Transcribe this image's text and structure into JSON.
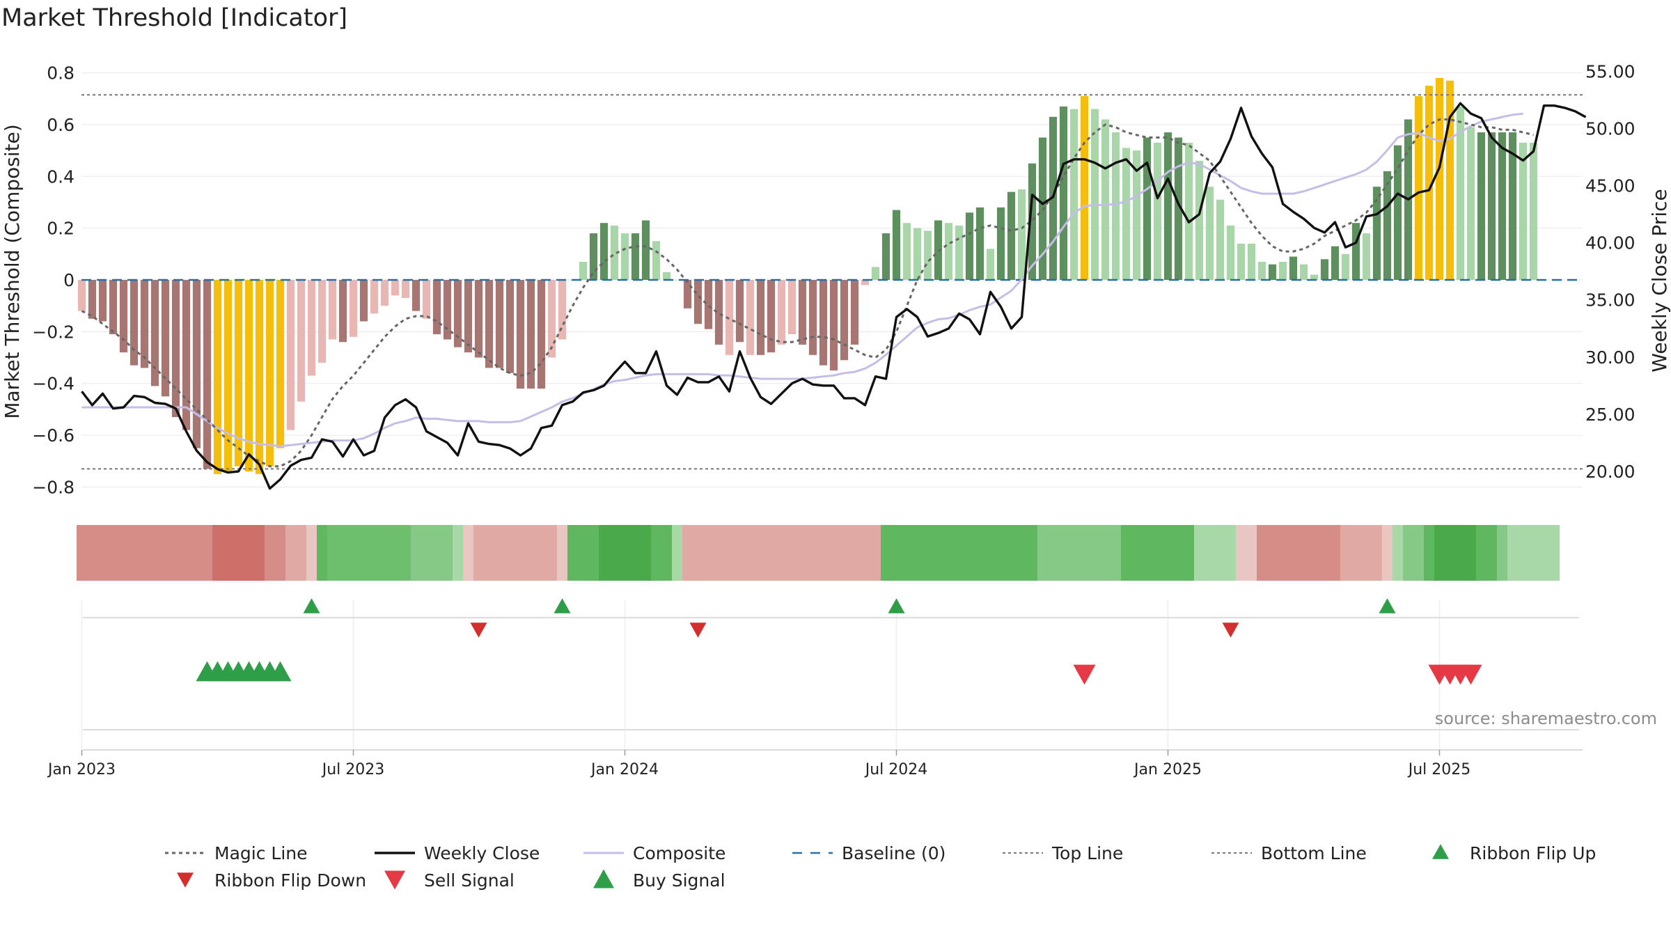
{
  "chart_data": {
    "type": "bar",
    "title": "Market Threshold [Indicator]",
    "ylabel": "Market Threshold (Composite)",
    "ylabel_right": "Weekly Close Price",
    "ylim": [
      -0.85,
      0.85
    ],
    "ylim_right": [
      17.5,
      56.0
    ],
    "yticks": [
      {
        "v": 0.8,
        "label": "0.8"
      },
      {
        "v": 0.6,
        "label": "0.6"
      },
      {
        "v": 0.4,
        "label": "0.4"
      },
      {
        "v": 0.2,
        "label": "0.2"
      },
      {
        "v": 0,
        "label": "0"
      },
      {
        "v": -0.2,
        "label": "−0.2"
      },
      {
        "v": -0.4,
        "label": "−0.4"
      },
      {
        "v": -0.6,
        "label": "−0.6"
      },
      {
        "v": -0.8,
        "label": "−0.8"
      }
    ],
    "yticks_right": [
      {
        "v": 55,
        "label": "55.00"
      },
      {
        "v": 50,
        "label": "50.00"
      },
      {
        "v": 45,
        "label": "45.00"
      },
      {
        "v": 40,
        "label": "40.00"
      },
      {
        "v": 35,
        "label": "35.00"
      },
      {
        "v": 30,
        "label": "30.00"
      },
      {
        "v": 25,
        "label": "25.00"
      },
      {
        "v": 20,
        "label": "20.00"
      }
    ],
    "xticks": [
      {
        "week": 1,
        "label": "Jan 2023"
      },
      {
        "week": 27,
        "label": "Jul 2023"
      },
      {
        "week": 53,
        "label": "Jan 2024"
      },
      {
        "week": 79,
        "label": "Jul 2024"
      },
      {
        "week": 105,
        "label": "Jan 2025"
      },
      {
        "week": 131,
        "label": "Jul 2025"
      }
    ],
    "top_line": 0.715,
    "bottom_line": -0.73,
    "baseline": 0,
    "composite": [
      -0.12,
      -0.15,
      -0.16,
      -0.21,
      -0.28,
      -0.33,
      -0.34,
      -0.41,
      -0.45,
      -0.53,
      -0.58,
      -0.65,
      -0.73,
      -0.75,
      -0.74,
      -0.72,
      -0.74,
      -0.75,
      -0.72,
      -0.65,
      -0.58,
      -0.47,
      -0.37,
      -0.32,
      -0.23,
      -0.24,
      -0.22,
      -0.16,
      -0.13,
      -0.1,
      -0.06,
      -0.07,
      -0.12,
      -0.15,
      -0.21,
      -0.23,
      -0.26,
      -0.28,
      -0.3,
      -0.34,
      -0.34,
      -0.36,
      -0.42,
      -0.42,
      -0.42,
      -0.3,
      -0.23,
      0.0,
      0.07,
      0.18,
      0.22,
      0.21,
      0.18,
      0.18,
      0.23,
      0.15,
      0.03,
      0.0,
      -0.11,
      -0.17,
      -0.19,
      -0.25,
      -0.29,
      -0.24,
      -0.29,
      -0.29,
      -0.28,
      -0.25,
      -0.21,
      -0.25,
      -0.29,
      -0.33,
      -0.35,
      -0.31,
      -0.25,
      -0.02,
      0.05,
      0.18,
      0.27,
      0.22,
      0.2,
      0.19,
      0.23,
      0.22,
      0.21,
      0.26,
      0.28,
      0.12,
      0.28,
      0.34,
      0.35,
      0.45,
      0.55,
      0.63,
      0.67,
      0.66,
      0.71,
      0.66,
      0.62,
      0.57,
      0.51,
      0.5,
      0.55,
      0.53,
      0.57,
      0.55,
      0.53,
      0.46,
      0.36,
      0.31,
      0.21,
      0.14,
      0.14,
      0.07,
      0.06,
      0.07,
      0.09,
      0.06,
      0.02,
      0.08,
      0.13,
      0.1,
      0.22,
      0.18,
      0.36,
      0.42,
      0.52,
      0.62,
      0.71,
      0.75,
      0.78,
      0.77,
      0.67,
      0.59,
      0.57,
      0.57,
      0.57,
      0.57,
      0.53,
      0.53
    ],
    "bar_colors": [
      "#e9b7b3",
      "#a87672",
      "#a87672",
      "#a87672",
      "#a87672",
      "#a87672",
      "#a87672",
      "#a87672",
      "#a87672",
      "#a87672",
      "#a87672",
      "#a87672",
      "#a87672",
      "#f5be0b",
      "#f5be0b",
      "#f5be0b",
      "#f5be0b",
      "#f5be0b",
      "#f5be0b",
      "#f5be0b",
      "#e9b7b3",
      "#e9b7b3",
      "#e9b7b3",
      "#e9b7b3",
      "#e9b7b3",
      "#a87672",
      "#e9b7b3",
      "#a87672",
      "#e9b7b3",
      "#e9b7b3",
      "#e9b7b3",
      "#e9b7b3",
      "#a87672",
      "#e9b7b3",
      "#a87672",
      "#a87672",
      "#a87672",
      "#a87672",
      "#a87672",
      "#a87672",
      "#a87672",
      "#a87672",
      "#a87672",
      "#a87672",
      "#a87672",
      "#e9b7b3",
      "#e9b7b3",
      "#a8d6a8",
      "#a8d6a8",
      "#5e8f5e",
      "#5e8f5e",
      "#a8d6a8",
      "#a8d6a8",
      "#5e8f5e",
      "#5e8f5e",
      "#a8d6a8",
      "#a8d6a8",
      "#a8d6a8",
      "#a87672",
      "#a87672",
      "#a87672",
      "#a87672",
      "#e9b7b3",
      "#a87672",
      "#e9b7b3",
      "#a87672",
      "#a87672",
      "#e9b7b3",
      "#e9b7b3",
      "#a87672",
      "#a87672",
      "#a87672",
      "#a87672",
      "#a87672",
      "#a87672",
      "#e9b7b3",
      "#a8d6a8",
      "#5e8f5e",
      "#5e8f5e",
      "#a8d6a8",
      "#a8d6a8",
      "#a8d6a8",
      "#5e8f5e",
      "#a8d6a8",
      "#a8d6a8",
      "#5e8f5e",
      "#5e8f5e",
      "#a8d6a8",
      "#5e8f5e",
      "#5e8f5e",
      "#a8d6a8",
      "#5e8f5e",
      "#5e8f5e",
      "#5e8f5e",
      "#5e8f5e",
      "#a8d6a8",
      "#f5be0b",
      "#a8d6a8",
      "#a8d6a8",
      "#a8d6a8",
      "#a8d6a8",
      "#a8d6a8",
      "#5e8f5e",
      "#a8d6a8",
      "#5e8f5e",
      "#5e8f5e",
      "#a8d6a8",
      "#a8d6a8",
      "#a8d6a8",
      "#a8d6a8",
      "#a8d6a8",
      "#a8d6a8",
      "#a8d6a8",
      "#a8d6a8",
      "#5e8f5e",
      "#a8d6a8",
      "#5e8f5e",
      "#a8d6a8",
      "#a8d6a8",
      "#5e8f5e",
      "#5e8f5e",
      "#a8d6a8",
      "#5e8f5e",
      "#a8d6a8",
      "#5e8f5e",
      "#5e8f5e",
      "#5e8f5e",
      "#5e8f5e",
      "#f5be0b",
      "#f5be0b",
      "#f5be0b",
      "#f5be0b",
      "#a8d6a8",
      "#a8d6a8",
      "#5e8f5e",
      "#5e8f5e",
      "#5e8f5e",
      "#5e8f5e",
      "#a8d6a8",
      "#a8d6a8"
    ],
    "magic_line": [
      -0.12,
      -0.14,
      -0.17,
      -0.2,
      -0.23,
      -0.27,
      -0.3,
      -0.34,
      -0.38,
      -0.42,
      -0.46,
      -0.5,
      -0.54,
      -0.58,
      -0.62,
      -0.65,
      -0.68,
      -0.7,
      -0.72,
      -0.72,
      -0.7,
      -0.66,
      -0.6,
      -0.53,
      -0.46,
      -0.41,
      -0.37,
      -0.32,
      -0.27,
      -0.22,
      -0.18,
      -0.15,
      -0.14,
      -0.14,
      -0.16,
      -0.19,
      -0.22,
      -0.25,
      -0.28,
      -0.31,
      -0.34,
      -0.36,
      -0.37,
      -0.36,
      -0.32,
      -0.26,
      -0.18,
      -0.1,
      -0.03,
      0.03,
      0.07,
      0.1,
      0.12,
      0.13,
      0.13,
      0.11,
      0.08,
      0.04,
      -0.01,
      -0.06,
      -0.1,
      -0.13,
      -0.15,
      -0.17,
      -0.19,
      -0.21,
      -0.23,
      -0.24,
      -0.24,
      -0.23,
      -0.22,
      -0.22,
      -0.23,
      -0.25,
      -0.27,
      -0.29,
      -0.3,
      -0.27,
      -0.2,
      -0.1,
      0.0,
      0.07,
      0.11,
      0.14,
      0.16,
      0.18,
      0.2,
      0.21,
      0.2,
      0.19,
      0.2,
      0.23,
      0.27,
      0.33,
      0.4,
      0.47,
      0.53,
      0.57,
      0.6,
      0.59,
      0.57,
      0.56,
      0.55,
      0.55,
      0.55,
      0.53,
      0.52,
      0.49,
      0.46,
      0.4,
      0.34,
      0.28,
      0.22,
      0.17,
      0.13,
      0.11,
      0.11,
      0.12,
      0.14,
      0.17,
      0.19,
      0.21,
      0.23,
      0.26,
      0.31,
      0.37,
      0.43,
      0.5,
      0.56,
      0.6,
      0.62,
      0.62,
      0.61,
      0.6,
      0.59,
      0.59,
      0.58,
      0.58,
      0.57,
      0.56
    ],
    "weekly_close": [
      27.0,
      25.8,
      26.8,
      25.5,
      25.6,
      26.6,
      26.5,
      26.0,
      25.9,
      25.5,
      23.5,
      21.8,
      20.8,
      20.2,
      19.9,
      20.0,
      21.5,
      20.6,
      18.5,
      19.3,
      20.5,
      21.0,
      21.2,
      22.8,
      22.6,
      21.3,
      22.8,
      21.4,
      21.8,
      24.7,
      25.8,
      26.3,
      25.6,
      23.5,
      23.0,
      22.5,
      21.4,
      24.2,
      22.6,
      22.4,
      22.3,
      22.0,
      21.4,
      22.0,
      23.8,
      24.0,
      25.8,
      26.1,
      26.9,
      27.1,
      27.5,
      28.6,
      29.6,
      28.6,
      28.6,
      30.5,
      27.5,
      26.7,
      28.2,
      27.8,
      27.8,
      28.3,
      27.0,
      30.5,
      28.2,
      26.5,
      25.9,
      26.8,
      27.7,
      28.1,
      27.6,
      27.5,
      27.5,
      26.4,
      26.4,
      25.8,
      28.3,
      28.1,
      33.5,
      34.2,
      33.5,
      31.8,
      32.1,
      32.5,
      33.8,
      33.3,
      32.0,
      35.7,
      34.4,
      32.5,
      33.5,
      44.2,
      43.4,
      44.0,
      46.9,
      47.3,
      47.3,
      47.0,
      46.5,
      47.0,
      47.3,
      46.3,
      47.0,
      43.9,
      45.6,
      43.4,
      41.8,
      42.5,
      46.1,
      47.1,
      49.1,
      51.8,
      49.3,
      47.8,
      46.6,
      43.4,
      42.7,
      42.1,
      41.3,
      40.9,
      41.8,
      39.6,
      40.0,
      42.3,
      42.5,
      43.2,
      44.3,
      43.8,
      44.4,
      44.6,
      46.6,
      51.0,
      52.2,
      51.3,
      50.9,
      49.2,
      48.3,
      47.8,
      47.2,
      48.0,
      52.0,
      52.0,
      51.8,
      51.5,
      51.0
    ],
    "composite_line": [
      25.6,
      25.6,
      25.6,
      25.6,
      25.6,
      25.6,
      25.6,
      25.6,
      25.6,
      25.6,
      25.6,
      25.0,
      24.4,
      23.8,
      23.3,
      22.9,
      22.6,
      22.4,
      22.3,
      22.2,
      22.3,
      22.4,
      22.5,
      22.6,
      22.7,
      22.7,
      22.7,
      22.9,
      23.3,
      23.8,
      24.2,
      24.4,
      24.7,
      24.6,
      24.6,
      24.5,
      24.4,
      24.4,
      24.4,
      24.3,
      24.3,
      24.3,
      24.4,
      24.8,
      25.2,
      25.6,
      26.1,
      26.4,
      26.8,
      27.2,
      27.6,
      27.9,
      28.0,
      28.2,
      28.4,
      28.5,
      28.5,
      28.5,
      28.5,
      28.5,
      28.5,
      28.4,
      28.4,
      28.3,
      28.2,
      28.1,
      28.1,
      28.1,
      28.1,
      28.1,
      28.2,
      28.3,
      28.4,
      28.6,
      28.7,
      29.0,
      29.5,
      30.2,
      31.0,
      31.8,
      32.6,
      33.0,
      33.3,
      33.4,
      33.7,
      34.1,
      34.4,
      34.6,
      35.2,
      35.8,
      36.8,
      38.0,
      39.0,
      40.1,
      41.4,
      42.6,
      43.2,
      43.3,
      43.3,
      43.4,
      43.6,
      44.1,
      44.7,
      45.4,
      46.2,
      46.7,
      47.0,
      46.9,
      46.4,
      45.9,
      45.4,
      44.8,
      44.5,
      44.3,
      44.3,
      44.3,
      44.3,
      44.5,
      44.8,
      45.1,
      45.4,
      45.7,
      46.0,
      46.4,
      47.1,
      48.1,
      49.2,
      49.5,
      49.6,
      49.2,
      48.9,
      49.1,
      49.7,
      50.2,
      50.6,
      50.8,
      51.0,
      51.2,
      51.3
    ],
    "series": [
      {
        "name": "Magic Line"
      },
      {
        "name": "Weekly Close"
      },
      {
        "name": "Composite"
      },
      {
        "name": "Baseline (0)"
      },
      {
        "name": "Top Line"
      },
      {
        "name": "Bottom Line"
      },
      {
        "name": "Ribbon Flip Up"
      },
      {
        "name": "Ribbon Flip Down"
      },
      {
        "name": "Sell Signal"
      },
      {
        "name": "Buy Signal"
      }
    ],
    "ribbon_colors": [
      "#d68d87",
      "#d68d87",
      "#d68d87",
      "#d68d87",
      "#d68d87",
      "#d68d87",
      "#d68d87",
      "#d68d87",
      "#d68d87",
      "#d68d87",
      "#d68d87",
      "#d68d87",
      "#d68d87",
      "#cf6f69",
      "#cf6f69",
      "#cf6f69",
      "#cf6f69",
      "#cf6f69",
      "#d68d87",
      "#d68d87",
      "#e0a9a4",
      "#e0a9a4",
      "#eac6c2",
      "#5fb85f",
      "#6dbf6d",
      "#6dbf6d",
      "#6dbf6d",
      "#6dbf6d",
      "#6dbf6d",
      "#6dbf6d",
      "#6dbf6d",
      "#6dbf6d",
      "#86c986",
      "#86c986",
      "#86c986",
      "#86c986",
      "#a8d8a8",
      "#eac6c2",
      "#e0a9a4",
      "#e0a9a4",
      "#e0a9a4",
      "#e0a9a4",
      "#e0a9a4",
      "#e0a9a4",
      "#e0a9a4",
      "#e0a9a4",
      "#eac6c2",
      "#5fb85f",
      "#5fb85f",
      "#5fb85f",
      "#4aaa4a",
      "#4aaa4a",
      "#4aaa4a",
      "#4aaa4a",
      "#4aaa4a",
      "#5fb85f",
      "#5fb85f",
      "#a8d8a8",
      "#e0a9a4",
      "#e0a9a4",
      "#e0a9a4",
      "#e0a9a4",
      "#e0a9a4",
      "#e0a9a4",
      "#e0a9a4",
      "#e0a9a4",
      "#e0a9a4",
      "#e0a9a4",
      "#e0a9a4",
      "#e0a9a4",
      "#e0a9a4",
      "#e0a9a4",
      "#e0a9a4",
      "#e0a9a4",
      "#e0a9a4",
      "#e0a9a4",
      "#e0a9a4",
      "#5fb85f",
      "#5fb85f",
      "#5fb85f",
      "#5fb85f",
      "#5fb85f",
      "#5fb85f",
      "#5fb85f",
      "#5fb85f",
      "#5fb85f",
      "#5fb85f",
      "#5fb85f",
      "#5fb85f",
      "#5fb85f",
      "#5fb85f",
      "#5fb85f",
      "#86c986",
      "#86c986",
      "#86c986",
      "#86c986",
      "#86c986",
      "#86c986",
      "#86c986",
      "#86c986",
      "#5fb85f",
      "#5fb85f",
      "#5fb85f",
      "#5fb85f",
      "#5fb85f",
      "#5fb85f",
      "#5fb85f",
      "#a8d8a8",
      "#a8d8a8",
      "#a8d8a8",
      "#a8d8a8",
      "#eac6c2",
      "#eac6c2",
      "#d68d87",
      "#d68d87",
      "#d68d87",
      "#d68d87",
      "#d68d87",
      "#d68d87",
      "#d68d87",
      "#d68d87",
      "#e0a9a4",
      "#e0a9a4",
      "#e0a9a4",
      "#e0a9a4",
      "#eac6c2",
      "#a8d8a8",
      "#86c986",
      "#86c986",
      "#5fb85f",
      "#4aaa4a",
      "#4aaa4a",
      "#4aaa4a",
      "#4aaa4a",
      "#5fb85f",
      "#5fb85f",
      "#86c986",
      "#a8d8a8",
      "#a8d8a8",
      "#a8d8a8",
      "#a8d8a8",
      "#a8d8a8"
    ],
    "ribbon_flip_up_weeks": [
      23,
      47,
      79,
      126
    ],
    "ribbon_flip_down_weeks": [
      39,
      60,
      111
    ],
    "buy_signal_weeks": [
      13,
      14,
      15,
      16,
      17,
      18,
      19,
      20
    ],
    "sell_signal_weeks": [
      97,
      131,
      132,
      133,
      134
    ],
    "colors": {
      "strong_negative": "#a87672",
      "weak_negative": "#e9b7b3",
      "strong_positive": "#5e8f5e",
      "weak_positive": "#a8d6a8",
      "extreme": "#f5be0b",
      "weekly_close": "#111111",
      "composite_line": "#c5bde8",
      "magic_line": "#666666",
      "baseline": "#2c6e9e",
      "flip_up": "#2e9e48",
      "flip_down": "#d32f2f",
      "buy": "#2e9e48",
      "sell": "#e53945"
    },
    "source": "source: sharemaestro.com",
    "legend": [
      {
        "key": "magic",
        "label": "Magic Line"
      },
      {
        "key": "close",
        "label": "Weekly Close"
      },
      {
        "key": "composite",
        "label": "Composite"
      },
      {
        "key": "baseline",
        "label": "Baseline (0)"
      },
      {
        "key": "top",
        "label": "Top Line"
      },
      {
        "key": "bottom",
        "label": "Bottom Line"
      },
      {
        "key": "flipup",
        "label": "Ribbon Flip Up"
      },
      {
        "key": "flipdown",
        "label": "Ribbon Flip Down"
      },
      {
        "key": "sell",
        "label": "Sell Signal"
      },
      {
        "key": "buy",
        "label": "Buy Signal"
      }
    ]
  }
}
